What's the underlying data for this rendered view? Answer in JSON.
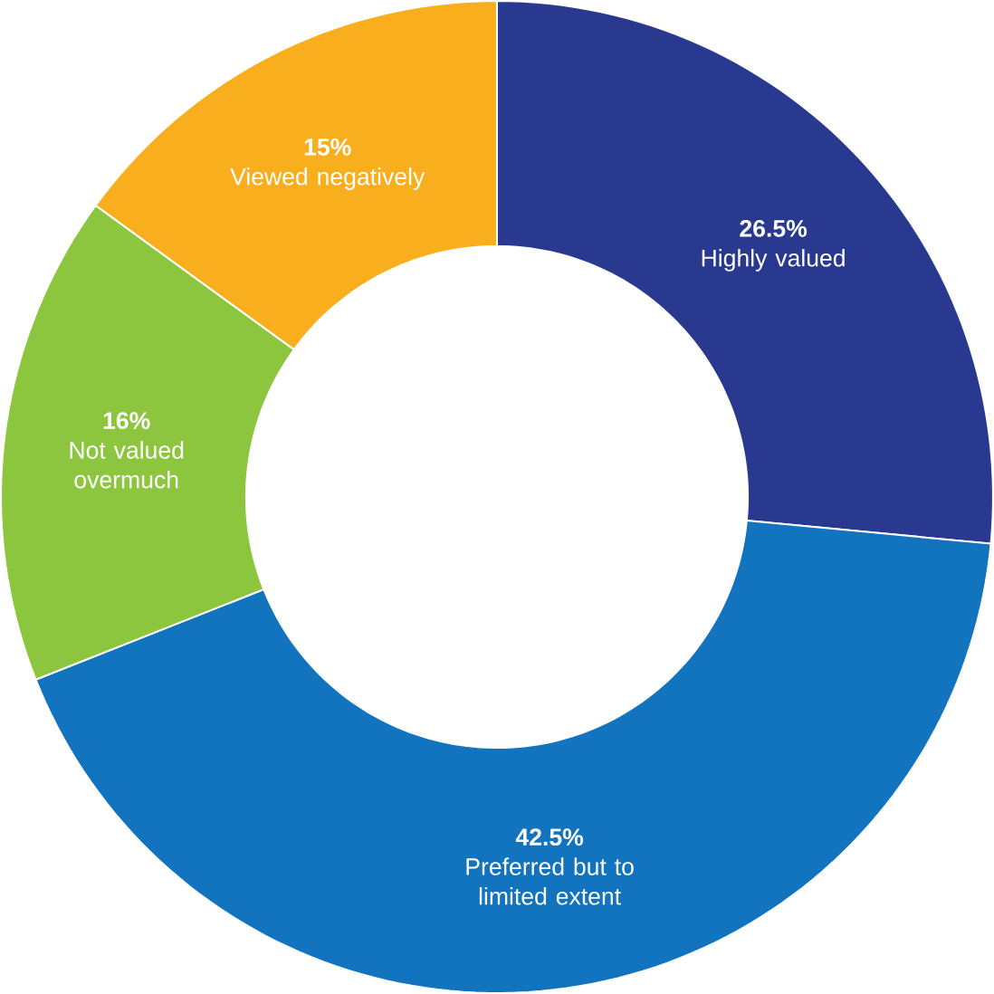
{
  "chart_data": {
    "type": "donut",
    "categories": [
      "Highly valued",
      "Preferred but to limited extent",
      "Not valued overmuch",
      "Viewed negatively"
    ],
    "values": [
      26.5,
      42.5,
      16,
      15
    ],
    "value_labels": [
      "26.5%",
      "42.5%",
      "16%",
      "15%"
    ],
    "colors": [
      "#2a3990",
      "#1273be",
      "#8cc63f",
      "#f9ae1d"
    ]
  }
}
